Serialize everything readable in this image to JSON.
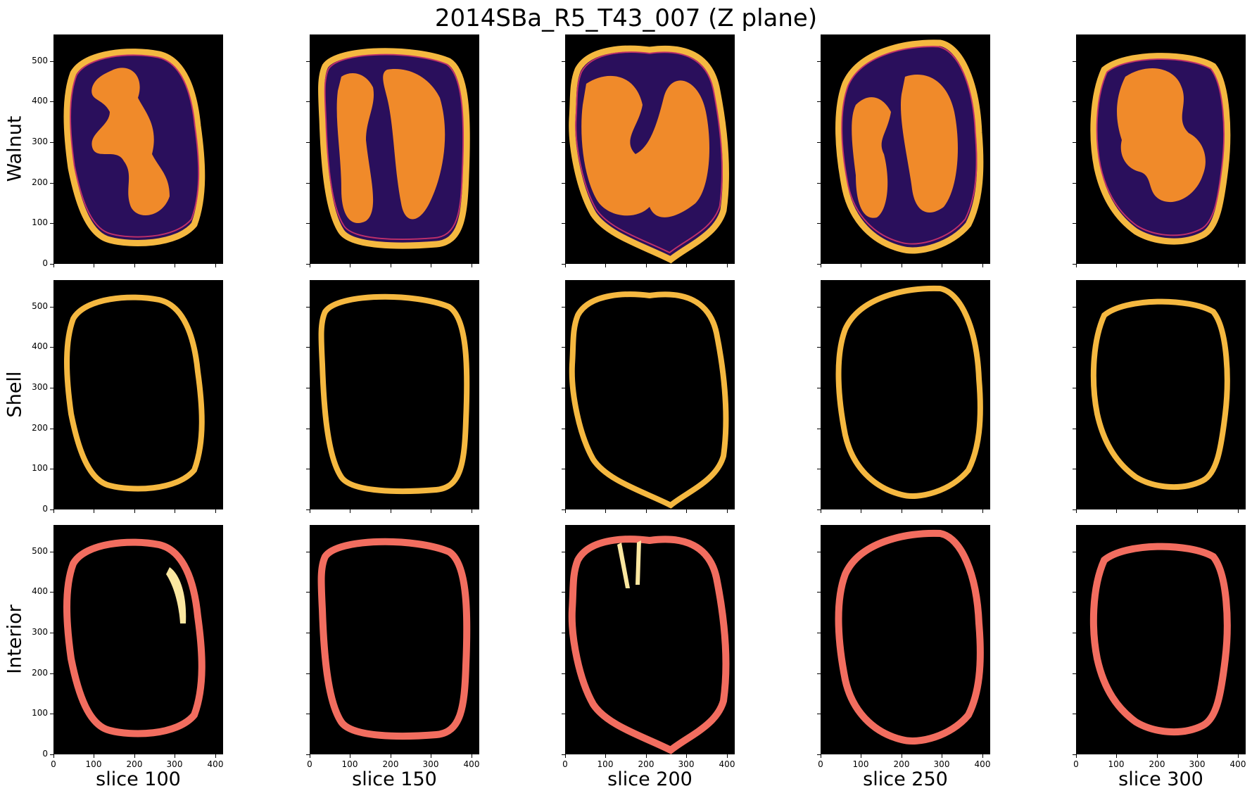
{
  "figure": {
    "title": "2014SBa_R5_T43_007 (Z plane)",
    "rows": [
      "Walnut",
      "Shell",
      "Interior"
    ],
    "columns": [
      "slice 100",
      "slice 150",
      "slice 200",
      "slice 250",
      "slice 300"
    ],
    "y_ticks": [
      "0",
      "100",
      "200",
      "300",
      "400",
      "500"
    ],
    "x_ticks": [
      "0",
      "100",
      "200",
      "300",
      "400"
    ],
    "colors": {
      "background": "#000000",
      "walnut_void": "#2a0f5c",
      "kernel": "#f08a2a",
      "shell_outer": "#f5b840",
      "shell_inner": "#c0306a",
      "interior_shell": "#f26d5f",
      "interior_extra": "#fbe7a0"
    }
  }
}
